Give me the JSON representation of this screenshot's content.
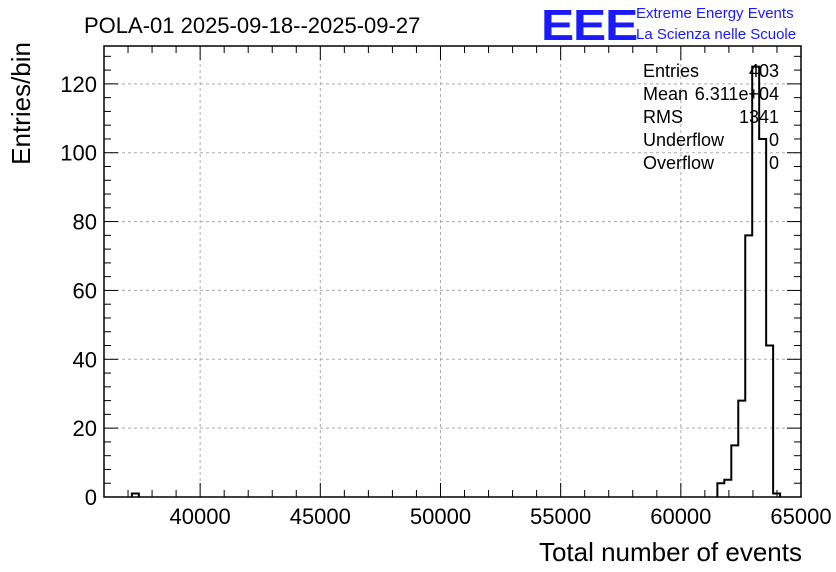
{
  "chart_data": {
    "type": "histogram",
    "title": "POLA-01 2025-09-18--2025-09-27",
    "xlabel": "Total number of events",
    "ylabel": "Entries/bin",
    "xlim": [
      36000,
      65000
    ],
    "ylim": [
      0,
      131
    ],
    "xticks": [
      40000,
      45000,
      50000,
      55000,
      60000,
      65000
    ],
    "yticks": [
      0,
      20,
      40,
      60,
      80,
      100,
      120
    ],
    "grid": true,
    "bin_width": 290,
    "bins": [
      {
        "x_low": 37160,
        "x_high": 37450,
        "count": 1
      },
      {
        "x_low": 61520,
        "x_high": 61810,
        "count": 4
      },
      {
        "x_low": 61810,
        "x_high": 62100,
        "count": 5
      },
      {
        "x_low": 62100,
        "x_high": 62390,
        "count": 15
      },
      {
        "x_low": 62390,
        "x_high": 62680,
        "count": 28
      },
      {
        "x_low": 62680,
        "x_high": 62970,
        "count": 76
      },
      {
        "x_low": 62970,
        "x_high": 63260,
        "count": 125
      },
      {
        "x_low": 63260,
        "x_high": 63550,
        "count": 104
      },
      {
        "x_low": 63550,
        "x_high": 63840,
        "count": 44
      },
      {
        "x_low": 63840,
        "x_high": 64130,
        "count": 1
      }
    ],
    "stats": [
      {
        "label": "Entries",
        "value": "403"
      },
      {
        "label": "Mean",
        "value": "6.311e+04"
      },
      {
        "label": "RMS",
        "value": "1341"
      },
      {
        "label": "Underflow",
        "value": "0"
      },
      {
        "label": "Overflow",
        "value": "0"
      }
    ]
  },
  "logo": {
    "text": "EEE",
    "line1": "Extreme Energy Events",
    "line2": "La Scienza nelle Scuole",
    "color": "#1a1aff"
  }
}
